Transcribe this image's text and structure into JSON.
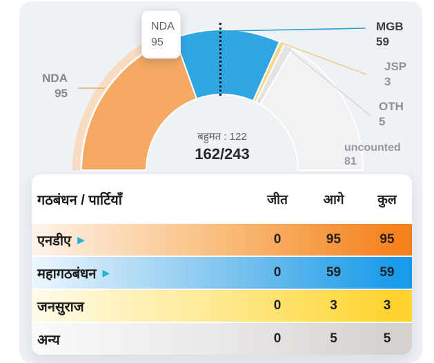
{
  "colors": {
    "panel_bg": "#eef1f6",
    "arrow": "#29b0d8",
    "majority_marker": "#141414"
  },
  "chart_data": {
    "type": "pie",
    "subtype": "half-donut",
    "title": "",
    "total_seats": 243,
    "majority": 122,
    "counted": 162,
    "legend_position": "around",
    "series": [
      {
        "name": "NDA",
        "value": 95,
        "color": "#f5a963",
        "halo_color": "#f8dcc2",
        "line_color": "#f0a35e",
        "label_color": "#83868a",
        "highlighted": true
      },
      {
        "name": "MGB",
        "value": 59,
        "color": "#30a7e2",
        "line_color": "#2f9fd6",
        "label_color": "#3b3e43"
      },
      {
        "name": "JSP",
        "value": 3,
        "color": "#f6d88c",
        "line_color": "#ecd089",
        "label_color": "#8f9296"
      },
      {
        "name": "OTH",
        "value": 5,
        "color": "#e3e3e5",
        "line_color": "#d8d8da",
        "label_color": "#8c8f93"
      },
      {
        "name": "uncounted",
        "value": 81,
        "color": "#f2f2f4",
        "label_color": "#96989d"
      }
    ]
  },
  "tooltip": {
    "line1": "NDA",
    "line2": "95"
  },
  "center": {
    "majority_text": "बहुमत : 122",
    "score_text": "162/243"
  },
  "table": {
    "headers": {
      "party": "गठबंधन / पार्टियाँ",
      "won": "जीत",
      "leading": "आगे",
      "total": "कुल"
    },
    "rows": [
      {
        "party": "एनडीए",
        "won": 0,
        "leading": 95,
        "total": 95,
        "color_from": "#fdf3ea",
        "color_mid": "#f9bd7b",
        "color_to": "#f5811d"
      },
      {
        "party": "महागठबंधन",
        "won": 0,
        "leading": 59,
        "total": 59,
        "color_from": "#edf6fd",
        "color_mid": "#82c5ef",
        "color_to": "#189be9"
      },
      {
        "party": "जनसुराज",
        "won": 0,
        "leading": 3,
        "total": 3,
        "color_from": "#fffbe9",
        "color_mid": "#ffe98f",
        "color_to": "#ffd32b"
      },
      {
        "party": "अन्य",
        "won": 0,
        "leading": 5,
        "total": 5,
        "color_from": "#fafaf9",
        "color_mid": "#eae8e7",
        "color_to": "#d4d1ce"
      }
    ]
  }
}
